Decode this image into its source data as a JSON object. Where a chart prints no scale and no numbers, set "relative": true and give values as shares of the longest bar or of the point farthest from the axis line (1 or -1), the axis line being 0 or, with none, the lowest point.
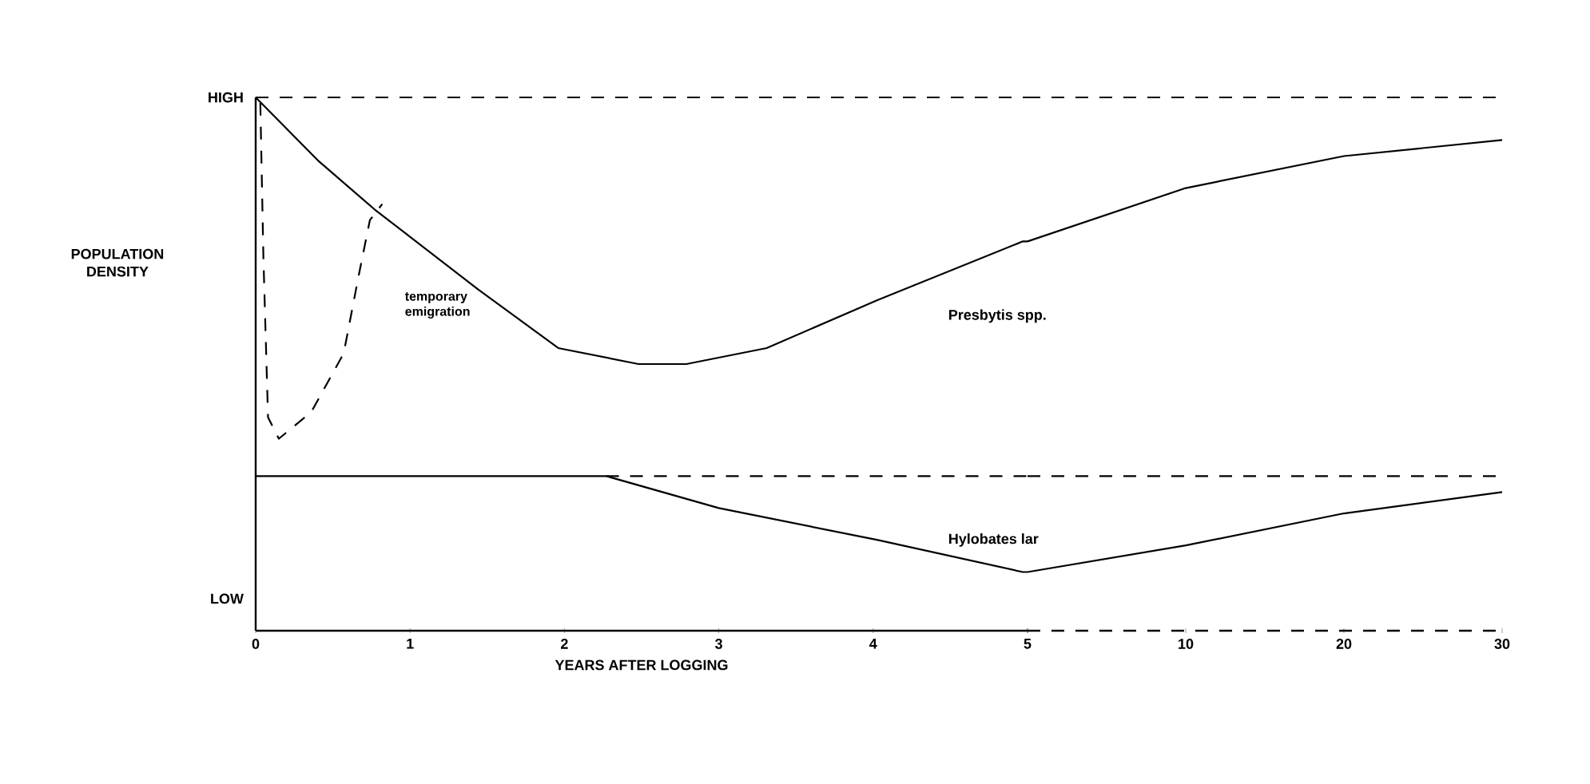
{
  "chart_data": [
    {
      "type": "line",
      "relative": true,
      "xlabel": "YEARS AFTER LOGGING",
      "xlim": [
        0,
        5
      ],
      "xticks": [
        0,
        1,
        2,
        3,
        4,
        5
      ],
      "series": [
        {
          "color": "#000000",
          "line_style": "dashed",
          "x": [
            0,
            5
          ],
          "values": [
            1,
            1
          ]
        },
        {
          "name": "Presbytis spp.",
          "color": "#000000",
          "line_style": "solid",
          "x": [
            0,
            0.41,
            0.77,
            1.44,
            1.96,
            2.48,
            2.79,
            3.31,
            4.03,
            4.97,
            5
          ],
          "values": [
            1,
            0.88,
            0.79,
            0.64,
            0.53,
            0.5,
            0.5,
            0.53,
            0.62,
            0.73,
            0.73
          ]
        },
        {
          "color": "#000000",
          "line_style": "dashed",
          "x": [
            0.03,
            0.05,
            0.08,
            0.15,
            0.36,
            0.57,
            0.67,
            0.74,
            0.82
          ],
          "values": [
            0.99,
            0.7,
            0.4,
            0.36,
            0.41,
            0.52,
            0.67,
            0.77,
            0.8
          ]
        },
        {
          "name": "Hylobates lar",
          "color": "#000000",
          "line_style": "solid",
          "x": [
            0,
            2.27,
            3,
            4.03,
            4.97,
            5
          ],
          "values": [
            0.29,
            0.29,
            0.23,
            0.17,
            0.11,
            0.11
          ]
        },
        {
          "color": "#000000",
          "line_style": "dashed",
          "x": [
            2.27,
            5
          ],
          "values": [
            0.29,
            0.29
          ]
        }
      ],
      "annotations": [
        "HIGH",
        "LOW",
        "POPULATION DENSITY",
        "temporary emigration"
      ],
      "legend": false,
      "grid": false,
      "marker": "none"
    },
    {
      "type": "line",
      "relative": true,
      "tick_labels": "x",
      "categories": [
        null,
        "10",
        "20",
        "30"
      ],
      "series": [
        {
          "color": "#000000",
          "line_style": "dashed",
          "values": [
            1,
            1,
            1,
            1
          ]
        },
        {
          "color": "#000000",
          "line_style": "solid",
          "values": [
            0.73,
            0.83,
            0.89,
            0.92
          ]
        },
        {
          "color": "#000000",
          "line_style": "solid",
          "values": [
            0.11,
            0.16,
            0.22,
            0.26
          ]
        },
        {
          "color": "#000000",
          "line_style": "dashed",
          "values": [
            0.29,
            0.29,
            0.29,
            0.29
          ]
        }
      ],
      "legend": false,
      "grid": false,
      "marker": "none"
    }
  ]
}
